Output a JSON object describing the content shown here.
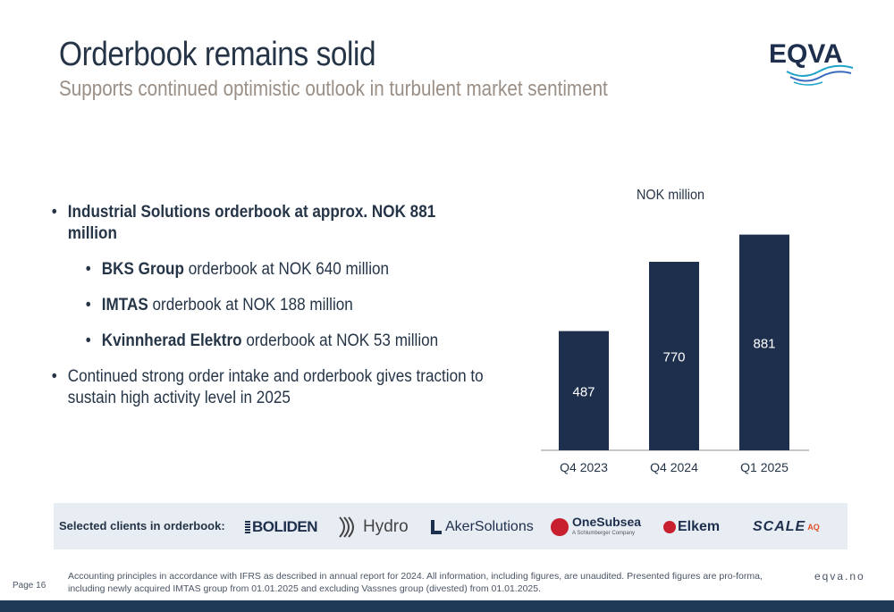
{
  "header": {
    "title": "Orderbook remains solid",
    "subtitle": "Supports continued optimistic outlook in turbulent market sentiment",
    "logo_text": "EQVA"
  },
  "bullets": {
    "b1_bold": "Industrial Solutions orderbook at approx. NOK 881 million",
    "b2_bold": "BKS Group",
    "b2_rest": " orderbook at NOK 640 million",
    "b3_bold": "IMTAS",
    "b3_rest": " orderbook at NOK 188 million",
    "b4_bold": "Kvinnherad Elektro",
    "b4_rest": " orderbook at NOK 53 million",
    "b5": "Continued strong order intake and orderbook gives traction to sustain high activity level in 2025"
  },
  "chart_data": {
    "type": "bar",
    "unit_label": "NOK million",
    "categories": [
      "Q4 2023",
      "Q4 2024",
      "Q1 2025"
    ],
    "values": [
      487,
      770,
      881
    ],
    "ylim": [
      0,
      900
    ],
    "bar_color": "#1e2f4d",
    "grid": false
  },
  "clients": {
    "label": "Selected clients in orderbook:",
    "logos": [
      "BOLIDEN",
      "Hydro",
      "AkerSolutions",
      "OneSubsea",
      "A Schlumberger Company",
      "Elkem",
      "SCALE",
      "AQ"
    ]
  },
  "footer": {
    "note": "Accounting principles in accordance with IFRS as described in annual report for 2024. All information, including figures, are unaudited. Presented figures are pro-forma, including newly acquired IMTAS group from 01.01.2025 and excluding Vassnes group (divested) from 01.01.2025.",
    "page": "Page 16",
    "site": "eqva.no"
  },
  "colors": {
    "navy": "#1e2f4d",
    "band": "#e8edf3",
    "subtitle": "#9a8f86",
    "bar_bottom": "#1e3a56"
  }
}
